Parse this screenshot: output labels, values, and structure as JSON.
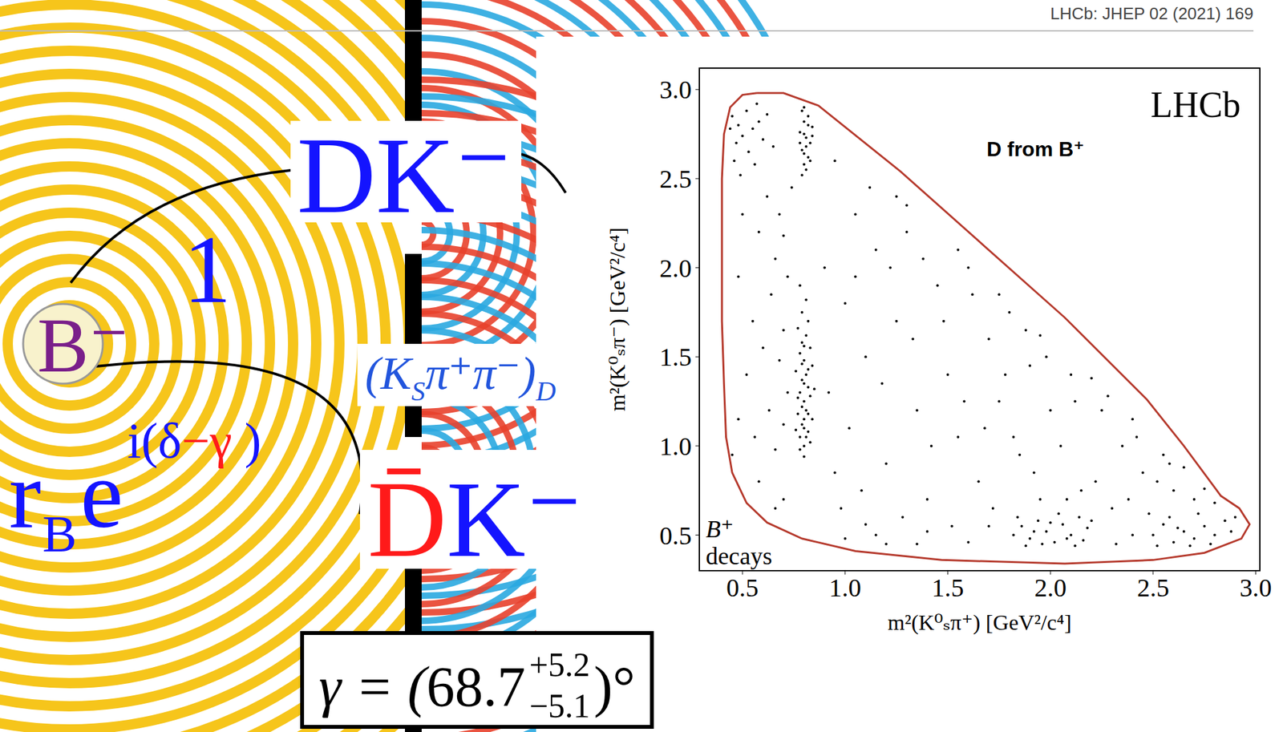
{
  "chart_data": {
    "type": "scatter",
    "title": "LHCb",
    "annotations": [
      "D from B⁺",
      "B⁺",
      "decays"
    ],
    "x_label": "m²(K⁰ₛπ⁺) [GeV²/c⁴]",
    "y_label": "m²(K⁰ₛπ⁻) [GeV²/c⁴]",
    "xlim": [
      0.29,
      3.02
    ],
    "ylim": [
      0.3,
      3.12
    ],
    "xticks": [
      0.5,
      {
        "value": 1,
        "label": "1.0"
      },
      1.5,
      {
        "value": 2,
        "label": "2.0"
      },
      2.5,
      {
        "value": 3,
        "label": "3.0"
      }
    ],
    "yticks": [
      0.5,
      {
        "value": 1,
        "label": "1.0"
      },
      1.5,
      {
        "value": 2,
        "label": "2.0"
      },
      2.5,
      {
        "value": 3,
        "label": "3.0"
      }
    ],
    "grid": false,
    "series": [
      {
        "type": "scatter",
        "marker": "dot",
        "color": "#000000",
        "points": [
          [
            0.8,
            1.0
          ],
          [
            0.78,
            1.05
          ],
          [
            0.82,
            1.08
          ],
          [
            0.79,
            1.12
          ],
          [
            0.84,
            1.15
          ],
          [
            0.77,
            1.18
          ],
          [
            0.81,
            1.2
          ],
          [
            0.8,
            1.25
          ],
          [
            0.83,
            1.28
          ],
          [
            0.78,
            1.3
          ],
          [
            0.82,
            1.33
          ],
          [
            0.79,
            1.37
          ],
          [
            0.81,
            1.4
          ],
          [
            0.76,
            1.42
          ],
          [
            0.84,
            1.45
          ],
          [
            0.8,
            1.48
          ],
          [
            0.78,
            1.52
          ],
          [
            0.83,
            1.55
          ],
          [
            0.79,
            1.58
          ],
          [
            0.81,
            1.62
          ],
          [
            0.77,
            1.66
          ],
          [
            0.82,
            1.7
          ],
          [
            0.8,
            1.1
          ],
          [
            0.8,
            1.35
          ],
          [
            0.79,
            1.22
          ],
          [
            0.83,
            1.02
          ],
          [
            0.78,
            0.98
          ],
          [
            0.8,
            0.94
          ],
          [
            0.82,
            1.43
          ],
          [
            0.77,
            1.27
          ],
          [
            0.85,
            1.32
          ],
          [
            0.8,
            1.56
          ],
          [
            0.79,
            1.75
          ],
          [
            0.81,
            1.82
          ],
          [
            0.78,
            1.9
          ],
          [
            0.8,
            1.15
          ],
          [
            0.82,
            1.18
          ],
          [
            0.79,
            1.46
          ],
          [
            0.81,
            1.05
          ],
          [
            0.76,
            1.09
          ],
          [
            0.8,
            2.58
          ],
          [
            0.82,
            2.62
          ],
          [
            0.79,
            2.66
          ],
          [
            0.83,
            2.7
          ],
          [
            0.81,
            2.73
          ],
          [
            0.78,
            2.76
          ],
          [
            0.84,
            2.79
          ],
          [
            0.8,
            2.82
          ],
          [
            0.82,
            2.85
          ],
          [
            0.79,
            2.88
          ],
          [
            0.81,
            2.68
          ],
          [
            0.8,
            2.75
          ],
          [
            0.83,
            2.6
          ],
          [
            0.78,
            2.7
          ],
          [
            0.82,
            2.8
          ],
          [
            0.8,
            2.9
          ],
          [
            0.81,
            2.55
          ],
          [
            0.79,
            2.52
          ],
          [
            0.84,
            2.74
          ],
          [
            0.8,
            2.64
          ],
          [
            0.45,
            2.85
          ],
          [
            0.48,
            2.8
          ],
          [
            0.52,
            2.88
          ],
          [
            0.5,
            2.74
          ],
          [
            0.55,
            2.78
          ],
          [
            0.47,
            2.7
          ],
          [
            0.58,
            2.82
          ],
          [
            0.53,
            2.65
          ],
          [
            0.6,
            2.72
          ],
          [
            0.46,
            2.6
          ],
          [
            0.62,
            2.86
          ],
          [
            0.56,
            2.58
          ],
          [
            0.49,
            2.52
          ],
          [
            0.65,
            2.68
          ],
          [
            0.44,
            2.78
          ],
          [
            0.57,
            2.92
          ],
          [
            0.62,
            2.4
          ],
          [
            0.68,
            2.3
          ],
          [
            0.7,
            2.18
          ],
          [
            0.66,
            2.05
          ],
          [
            0.72,
            1.95
          ],
          [
            0.58,
            2.2
          ],
          [
            0.5,
            2.3
          ],
          [
            0.74,
            2.45
          ],
          [
            0.64,
            1.85
          ],
          [
            0.55,
            1.7
          ],
          [
            0.7,
            1.65
          ],
          [
            0.48,
            1.95
          ],
          [
            0.6,
            1.55
          ],
          [
            0.68,
            1.48
          ],
          [
            0.52,
            1.4
          ],
          [
            0.72,
            1.3
          ],
          [
            0.63,
            1.2
          ],
          [
            0.7,
            1.12
          ],
          [
            0.56,
            1.05
          ],
          [
            0.66,
            0.98
          ],
          [
            0.48,
            1.15
          ],
          [
            0.45,
            0.95
          ],
          [
            0.58,
            0.8
          ],
          [
            0.7,
            0.7
          ],
          [
            0.66,
            0.65
          ],
          [
            1.0,
            1.8
          ],
          [
            1.05,
            2.3
          ],
          [
            1.1,
            1.5
          ],
          [
            1.15,
            2.1
          ],
          [
            1.2,
            0.9
          ],
          [
            1.25,
            1.7
          ],
          [
            1.3,
            2.2
          ],
          [
            1.35,
            1.2
          ],
          [
            1.4,
            0.7
          ],
          [
            1.45,
            1.9
          ],
          [
            1.5,
            1.4
          ],
          [
            1.55,
            1.05
          ],
          [
            1.6,
            2.0
          ],
          [
            1.65,
            0.8
          ],
          [
            1.7,
            1.6
          ],
          [
            1.75,
            1.25
          ],
          [
            1.8,
            1.75
          ],
          [
            1.85,
            0.95
          ],
          [
            1.9,
            1.45
          ],
          [
            1.95,
            0.7
          ],
          [
            2.0,
            1.2
          ],
          [
            1.02,
            1.1
          ],
          [
            1.08,
            0.75
          ],
          [
            1.12,
            2.45
          ],
          [
            1.18,
            1.35
          ],
          [
            1.22,
            2.0
          ],
          [
            1.28,
            0.6
          ],
          [
            1.33,
            1.6
          ],
          [
            1.38,
            2.05
          ],
          [
            1.42,
            1.0
          ],
          [
            1.48,
            1.7
          ],
          [
            1.52,
            0.55
          ],
          [
            1.58,
            1.25
          ],
          [
            1.62,
            1.85
          ],
          [
            1.68,
            1.1
          ],
          [
            1.72,
            0.65
          ],
          [
            1.78,
            1.4
          ],
          [
            1.82,
            1.05
          ],
          [
            1.88,
            1.65
          ],
          [
            1.92,
            0.85
          ],
          [
            1.98,
            1.5
          ],
          [
            0.95,
            2.6
          ],
          [
            0.92,
            1.3
          ],
          [
            0.98,
            0.65
          ],
          [
            1.05,
            1.95
          ],
          [
            1.15,
            0.5
          ],
          [
            1.25,
            2.4
          ],
          [
            1.35,
            0.45
          ],
          [
            0.9,
            2.0
          ],
          [
            0.95,
            0.85
          ],
          [
            1.82,
            0.5
          ],
          [
            1.86,
            0.55
          ],
          [
            1.9,
            0.48
          ],
          [
            1.94,
            0.58
          ],
          [
            1.98,
            0.52
          ],
          [
            2.02,
            0.46
          ],
          [
            2.06,
            0.56
          ],
          [
            2.1,
            0.5
          ],
          [
            2.14,
            0.6
          ],
          [
            2.18,
            0.54
          ],
          [
            1.88,
            0.44
          ],
          [
            1.96,
            0.45
          ],
          [
            2.04,
            0.62
          ],
          [
            2.12,
            0.44
          ],
          [
            2.0,
            0.57
          ],
          [
            1.92,
            0.52
          ],
          [
            2.08,
            0.48
          ],
          [
            1.84,
            0.6
          ],
          [
            2.16,
            0.47
          ],
          [
            2.2,
            0.58
          ],
          [
            1.0,
            0.48
          ],
          [
            1.2,
            0.45
          ],
          [
            1.4,
            0.52
          ],
          [
            1.6,
            0.46
          ],
          [
            1.7,
            0.55
          ],
          [
            1.1,
            0.56
          ],
          [
            2.5,
            0.5
          ],
          [
            2.55,
            0.56
          ],
          [
            2.6,
            0.46
          ],
          [
            2.65,
            0.52
          ],
          [
            2.7,
            0.48
          ],
          [
            2.75,
            0.55
          ],
          [
            2.8,
            0.5
          ],
          [
            2.85,
            0.58
          ],
          [
            2.58,
            0.6
          ],
          [
            2.68,
            0.44
          ],
          [
            2.72,
            0.62
          ],
          [
            2.78,
            0.45
          ],
          [
            2.62,
            0.54
          ],
          [
            2.52,
            0.44
          ],
          [
            2.88,
            0.52
          ],
          [
            2.9,
            0.6
          ],
          [
            2.22,
            0.8
          ],
          [
            2.25,
            1.2
          ],
          [
            2.3,
            0.65
          ],
          [
            2.35,
            1.0
          ],
          [
            2.4,
            0.5
          ],
          [
            2.45,
            0.85
          ],
          [
            2.28,
            1.28
          ],
          [
            2.38,
            0.7
          ],
          [
            2.42,
            1.05
          ],
          [
            2.48,
            0.62
          ],
          [
            2.32,
            0.45
          ],
          [
            2.05,
            1.0
          ],
          [
            2.1,
            1.4
          ],
          [
            2.15,
            0.75
          ],
          [
            2.12,
            1.25
          ],
          [
            2.08,
            0.7
          ],
          [
            2.55,
            0.95
          ],
          [
            2.6,
            0.75
          ],
          [
            2.65,
            0.88
          ],
          [
            2.7,
            0.7
          ],
          [
            2.75,
            0.76
          ],
          [
            2.8,
            0.68
          ],
          [
            2.58,
            0.9
          ],
          [
            2.52,
            0.8
          ],
          [
            1.3,
            2.35
          ],
          [
            1.55,
            2.1
          ],
          [
            1.75,
            1.85
          ],
          [
            1.95,
            1.62
          ],
          [
            2.2,
            1.38
          ],
          [
            2.4,
            1.15
          ]
        ]
      },
      {
        "type": "line",
        "color": "#b5392c",
        "points": [
          [
            0.57,
            2.98
          ],
          [
            0.5,
            2.97
          ],
          [
            0.44,
            2.9
          ],
          [
            0.41,
            2.75
          ],
          [
            0.4,
            2.5
          ],
          [
            0.4,
            2.1
          ],
          [
            0.4,
            1.7
          ],
          [
            0.41,
            1.35
          ],
          [
            0.42,
            1.05
          ],
          [
            0.45,
            0.85
          ],
          [
            0.52,
            0.68
          ],
          [
            0.62,
            0.57
          ],
          [
            0.79,
            0.48
          ],
          [
            1.05,
            0.41
          ],
          [
            1.47,
            0.36
          ],
          [
            2.07,
            0.34
          ],
          [
            2.5,
            0.36
          ],
          [
            2.75,
            0.4
          ],
          [
            2.93,
            0.48
          ],
          [
            2.97,
            0.56
          ],
          [
            2.92,
            0.65
          ],
          [
            2.83,
            0.72
          ],
          [
            2.65,
            1.0
          ],
          [
            2.47,
            1.26
          ],
          [
            2.07,
            1.72
          ],
          [
            1.67,
            2.13
          ],
          [
            1.27,
            2.54
          ],
          [
            0.87,
            2.91
          ],
          [
            0.7,
            2.98
          ],
          [
            0.57,
            2.98
          ]
        ]
      }
    ]
  },
  "diagram": {
    "reference": "LHCb: JHEP 02 (2021) 169",
    "amplitude": "1",
    "parent": "B⁻",
    "upper_state": "DK⁻",
    "lower_state": {
      "parts": [
        "D̄",
        "K⁻"
      ],
      "colors": [
        "#ff1a1a",
        "#1414ff"
      ]
    },
    "ratio": {
      "r": "r",
      "subscript": "B",
      "base": "e",
      "exponent": [
        "i(δ",
        "−γ",
        " )"
      ],
      "exponent_colors": [
        "#1414ff",
        "#ff1a1a",
        "#1414ff"
      ]
    },
    "decay": [
      "(K",
      "S",
      "π⁺π⁻)",
      "D"
    ],
    "result": {
      "prefix": "γ = (",
      "value": "68.7",
      "upper": "+5.2",
      "lower": "−5.1",
      "suffix": ")°"
    }
  }
}
